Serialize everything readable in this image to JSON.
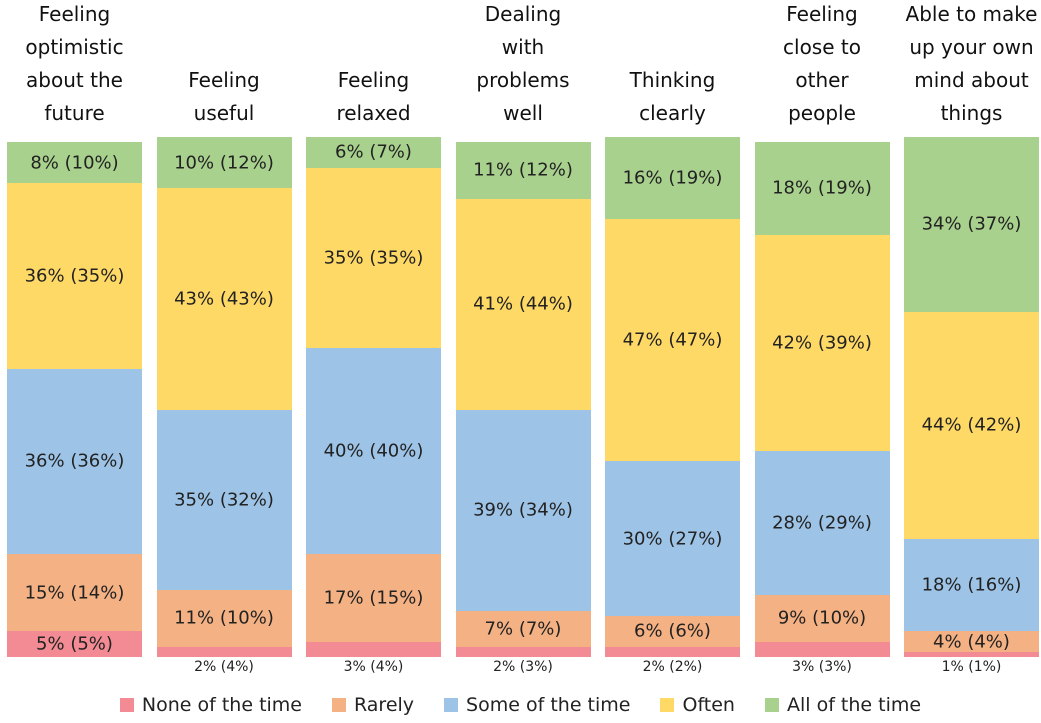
{
  "chart_data": {
    "type": "stacked_bar",
    "categories": [
      "Feeling\noptimistic\nabout the\nfuture",
      "Feeling\nuseful",
      "Feeling\nrelaxed",
      "Dealing\nwith\nproblems\nwell",
      "Thinking\nclearly",
      "Feeling\nclose to\nother\npeople",
      "Able to make\nup your own\nmind about\nthings"
    ],
    "series": [
      {
        "name": "None of the time",
        "color": "#f28b93",
        "values": [
          5,
          2,
          3,
          2,
          2,
          3,
          1
        ],
        "value_labels": [
          "5% (5%)",
          "2% (4%)",
          "3% (4%)",
          "2% (3%)",
          "2% (2%)",
          "3% (3%)",
          "1% (1%)"
        ]
      },
      {
        "name": "Rarely",
        "color": "#f4b183",
        "values": [
          15,
          11,
          17,
          7,
          6,
          9,
          4
        ],
        "value_labels": [
          "15% (14%)",
          "11% (10%)",
          "17% (15%)",
          "7% (7%)",
          "6% (6%)",
          "9% (10%)",
          "4% (4%)"
        ]
      },
      {
        "name": "Some of the time",
        "color": "#9dc3e6",
        "values": [
          36,
          35,
          40,
          39,
          30,
          28,
          18
        ],
        "value_labels": [
          "36% (36%)",
          "35% (32%)",
          "40% (40%)",
          "39% (34%)",
          "30% (27%)",
          "28% (29%)",
          "18% (16%)"
        ]
      },
      {
        "name": "Often",
        "color": "#ffd966",
        "values": [
          36,
          43,
          35,
          41,
          47,
          42,
          44
        ],
        "value_labels": [
          "36% (35%)",
          "43% (43%)",
          "35% (35%)",
          "41% (44%)",
          "47% (47%)",
          "42% (39%)",
          "44% (42%)"
        ]
      },
      {
        "name": "All of the time",
        "color": "#a9d18e",
        "values": [
          8,
          10,
          6,
          11,
          16,
          18,
          34
        ],
        "value_labels": [
          "8% (10%)",
          "10% (12%)",
          "6% (7%)",
          "11% (12%)",
          "16% (19%)",
          "18% (19%)",
          "34% (37%)"
        ]
      }
    ]
  }
}
